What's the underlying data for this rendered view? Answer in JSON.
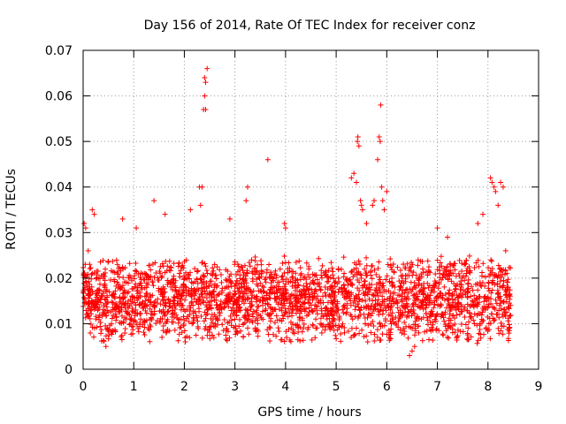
{
  "chart_data": {
    "type": "scatter",
    "title": "Day 156 of 2014, Rate Of TEC Index for receiver conz",
    "xlabel": "GPS time / hours",
    "ylabel": "ROTI / TECUs",
    "xlim": [
      0,
      9
    ],
    "ylim": [
      0,
      0.07
    ],
    "x_ticks": [
      0,
      1,
      2,
      3,
      4,
      5,
      6,
      7,
      8,
      9
    ],
    "x_tick_labels": [
      "0",
      "1",
      "2",
      "3",
      "4",
      "5",
      "6",
      "7",
      "8",
      "9"
    ],
    "y_ticks": [
      0,
      0.01,
      0.02,
      0.03,
      0.04,
      0.05,
      0.06,
      0.07
    ],
    "y_tick_labels": [
      "0",
      "0.01",
      "0.02",
      "0.03",
      "0.04",
      "0.05",
      "0.06",
      "0.07"
    ],
    "grid": true,
    "marker": "+",
    "color": "#ff0000",
    "series": [
      {
        "name": "ROTI",
        "x_range": [
          0,
          8.45
        ],
        "baseline_y": 0.014,
        "typical_spread": [
          0.005,
          0.026
        ],
        "points": [
          [
            0.02,
            0.032
          ],
          [
            0.05,
            0.031
          ],
          [
            0.1,
            0.026
          ],
          [
            0.18,
            0.035
          ],
          [
            0.22,
            0.034
          ],
          [
            0.45,
            0.005
          ],
          [
            0.78,
            0.033
          ],
          [
            1.05,
            0.031
          ],
          [
            1.4,
            0.037
          ],
          [
            1.62,
            0.034
          ],
          [
            2.02,
            0.006
          ],
          [
            2.12,
            0.035
          ],
          [
            2.3,
            0.04
          ],
          [
            2.35,
            0.04
          ],
          [
            2.32,
            0.036
          ],
          [
            2.4,
            0.064
          ],
          [
            2.42,
            0.063
          ],
          [
            2.45,
            0.066
          ],
          [
            2.4,
            0.06
          ],
          [
            2.38,
            0.057
          ],
          [
            2.42,
            0.057
          ],
          [
            2.9,
            0.033
          ],
          [
            3.25,
            0.04
          ],
          [
            3.22,
            0.037
          ],
          [
            3.65,
            0.046
          ],
          [
            3.98,
            0.032
          ],
          [
            4.0,
            0.031
          ],
          [
            5.3,
            0.042
          ],
          [
            5.35,
            0.043
          ],
          [
            5.4,
            0.041
          ],
          [
            5.42,
            0.05
          ],
          [
            5.43,
            0.051
          ],
          [
            5.45,
            0.049
          ],
          [
            5.48,
            0.037
          ],
          [
            5.5,
            0.036
          ],
          [
            5.52,
            0.035
          ],
          [
            5.6,
            0.032
          ],
          [
            5.72,
            0.036
          ],
          [
            5.75,
            0.037
          ],
          [
            5.85,
            0.051
          ],
          [
            5.87,
            0.05
          ],
          [
            5.88,
            0.058
          ],
          [
            5.82,
            0.046
          ],
          [
            5.9,
            0.04
          ],
          [
            5.92,
            0.037
          ],
          [
            5.95,
            0.035
          ],
          [
            6.0,
            0.039
          ],
          [
            6.45,
            0.003
          ],
          [
            6.5,
            0.004
          ],
          [
            6.55,
            0.005
          ],
          [
            7.0,
            0.031
          ],
          [
            7.2,
            0.029
          ],
          [
            7.8,
            0.032
          ],
          [
            7.9,
            0.034
          ],
          [
            8.05,
            0.042
          ],
          [
            8.08,
            0.041
          ],
          [
            8.12,
            0.04
          ],
          [
            8.15,
            0.039
          ],
          [
            8.2,
            0.036
          ],
          [
            8.25,
            0.041
          ],
          [
            8.3,
            0.04
          ],
          [
            8.35,
            0.026
          ],
          [
            8.4,
            0.018
          ],
          [
            8.42,
            0.009
          ]
        ]
      }
    ]
  }
}
